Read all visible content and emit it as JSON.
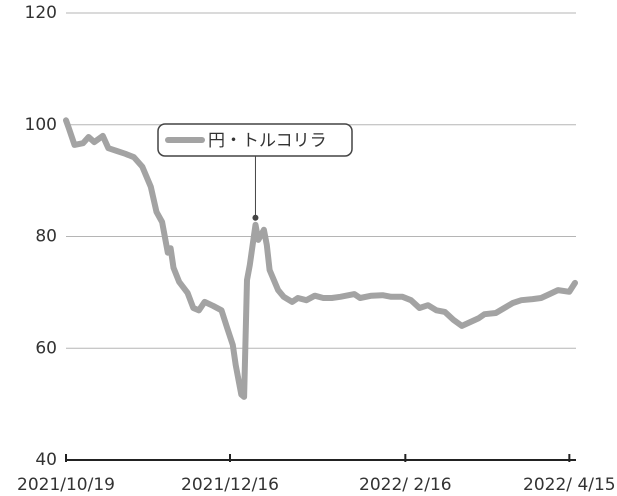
{
  "chart_data": {
    "type": "line",
    "x": [
      "2021-10-19",
      "2021-10-20",
      "2021-10-22",
      "2021-10-25",
      "2021-10-27",
      "2021-10-29",
      "2021-11-01",
      "2021-11-03",
      "2021-11-06",
      "2021-11-09",
      "2021-11-12",
      "2021-11-15",
      "2021-11-18",
      "2021-11-20",
      "2021-11-22",
      "2021-11-24",
      "2021-11-25",
      "2021-11-26",
      "2021-11-28",
      "2021-12-01",
      "2021-12-03",
      "2021-12-05",
      "2021-12-07",
      "2021-12-10",
      "2021-12-13",
      "2021-12-15",
      "2021-12-17",
      "2021-12-18",
      "2021-12-20",
      "2021-12-21",
      "2021-12-22",
      "2021-12-23",
      "2021-12-25",
      "2021-12-26",
      "2021-12-28",
      "2021-12-29",
      "2021-12-30",
      "2022-01-02",
      "2022-01-04",
      "2022-01-07",
      "2022-01-09",
      "2022-01-12",
      "2022-01-15",
      "2022-01-18",
      "2022-01-21",
      "2022-01-24",
      "2022-01-29",
      "2022-01-31",
      "2022-02-04",
      "2022-02-08",
      "2022-02-11",
      "2022-02-15",
      "2022-02-18",
      "2022-02-21",
      "2022-02-24",
      "2022-02-27",
      "2022-03-02",
      "2022-03-05",
      "2022-03-08",
      "2022-03-11",
      "2022-03-14",
      "2022-03-16",
      "2022-03-20",
      "2022-03-23",
      "2022-03-26",
      "2022-03-29",
      "2022-04-02",
      "2022-04-05",
      "2022-04-08",
      "2022-04-11",
      "2022-04-15",
      "2022-04-17"
    ],
    "series": [
      {
        "name": "円・トルコリラ",
        "color": "#a3a3a3",
        "values": [
          100.8,
          99.4,
          96.4,
          96.7,
          97.8,
          96.9,
          98.0,
          95.8,
          95.3,
          94.8,
          94.2,
          92.5,
          88.9,
          84.4,
          82.6,
          77.1,
          77.9,
          74.4,
          71.9,
          69.9,
          67.2,
          66.8,
          68.3,
          67.6,
          66.8,
          63.6,
          60.6,
          57.0,
          51.7,
          51.3,
          72.2,
          74.9,
          82.1,
          79.4,
          81.2,
          78.5,
          74.0,
          70.4,
          69.2,
          68.3,
          69.0,
          68.6,
          69.4,
          69.0,
          69.0,
          69.2,
          69.7,
          69.0,
          69.4,
          69.5,
          69.2,
          69.2,
          68.6,
          67.2,
          67.7,
          66.8,
          66.5,
          65.1,
          64.0,
          64.7,
          65.4,
          66.1,
          66.3,
          67.2,
          68.1,
          68.6,
          68.8,
          69.0,
          69.7,
          70.4,
          70.1,
          71.7
        ]
      }
    ],
    "xlim": [
      "2021-10-19",
      "2022-04-17"
    ],
    "xticks": [
      {
        "value": "2021-10-19",
        "label": "2021/10/19"
      },
      {
        "value": "2021-12-16",
        "label": "2021/12/16"
      },
      {
        "value": "2022-02-16",
        "label": "2022/ 2/16"
      },
      {
        "value": "2022-04-15",
        "label": "2022/ 4/15"
      }
    ],
    "ylim": [
      40,
      120
    ],
    "yticks": [
      40,
      60,
      80,
      100,
      120
    ],
    "grid": true
  }
}
